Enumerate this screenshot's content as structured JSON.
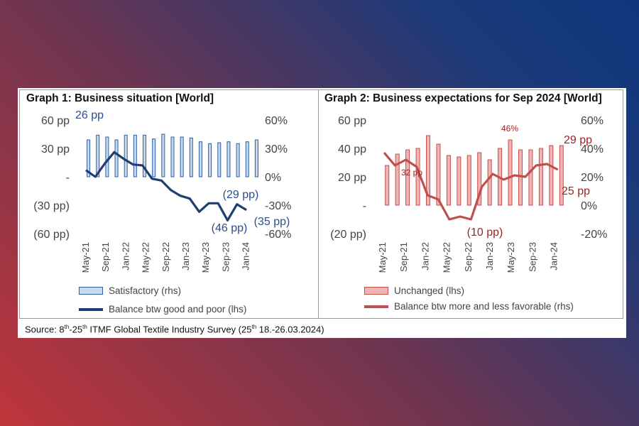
{
  "source": {
    "prefix": "Source: 8",
    "sup1": "th",
    "mid1": "-25",
    "sup2": "th",
    "mid2": " ITMF Global Textile Industry Survey (25",
    "sup3": "th",
    "suffix": " 18.-26.03.2024)"
  },
  "colors": {
    "blue_line": "#1f3f73",
    "blue_bar_fill": "#c5d9ef",
    "blue_bar_edge": "#2f5f9e",
    "red_line": "#c0504d",
    "red_bar_fill": "#f2b3b3",
    "red_bar_edge": "#c0504d"
  },
  "chart_data": [
    {
      "type": "bar+line",
      "title": "Graph 1: Business situation [World]",
      "xtick_labels": [
        "May-21",
        "Sep-21",
        "Jan-22",
        "May-22",
        "Sep-22",
        "Jan-23",
        "May-23",
        "Sep-23",
        "Jan-24"
      ],
      "left_axis": {
        "ticks": [
          60,
          30,
          0,
          -30,
          -60
        ],
        "labels": [
          "60 pp",
          "30 pp",
          "-",
          "(30 pp)",
          "(60 pp)"
        ],
        "range": [
          -60,
          60
        ]
      },
      "right_axis": {
        "ticks": [
          60,
          30,
          0,
          -30,
          -60
        ],
        "labels": [
          "60%",
          "30%",
          "0%",
          "-30%",
          "-60%"
        ],
        "range": [
          -60,
          60
        ]
      },
      "series": [
        {
          "name": "Satisfactory (rhs)",
          "kind": "bar",
          "axis": "right",
          "values": [
            39,
            44,
            42,
            39,
            44,
            44,
            44,
            40,
            45,
            42,
            42,
            41,
            37,
            35,
            36,
            37,
            35,
            37,
            39
          ]
        },
        {
          "name": "Balance btw good and poor (lhs)",
          "kind": "line",
          "axis": "left",
          "values": [
            7,
            0,
            14,
            26,
            19,
            13,
            12,
            -2,
            -4,
            -14,
            -20,
            -23,
            -37,
            -28,
            -28,
            -46,
            -29,
            -35
          ]
        }
      ],
      "annotations": [
        "26 pp",
        "(29 pp)",
        "(46 pp)",
        "(35 pp)"
      ]
    },
    {
      "type": "bar+line",
      "title": "Graph 2: Business expectations for Sep 2024 [World]",
      "xtick_labels": [
        "May-21",
        "Sep-21",
        "Jan-22",
        "May-22",
        "Sep-22",
        "Jan-23",
        "May-23",
        "Sep-23",
        "Jan-24"
      ],
      "left_axis": {
        "ticks": [
          60,
          40,
          20,
          0,
          -20
        ],
        "labels": [
          "60 pp",
          "40 pp",
          "20 pp",
          "-",
          "(20 pp)"
        ],
        "range": [
          -20,
          60
        ]
      },
      "right_axis": {
        "ticks": [
          60,
          40,
          20,
          0,
          -20
        ],
        "labels": [
          "60%",
          "40%",
          "20%",
          "0%",
          "-20%"
        ],
        "range": [
          -20,
          60
        ]
      },
      "series": [
        {
          "name": "Unchanged (lhs)",
          "kind": "bar",
          "axis": "left",
          "values": [
            28,
            36,
            39,
            40,
            49,
            43,
            35,
            34,
            35,
            37,
            32,
            40,
            46,
            39,
            39,
            40,
            42,
            42
          ]
        },
        {
          "name": "Balance btw more and less favorable (rhs)",
          "kind": "line",
          "axis": "right",
          "values": [
            37,
            28,
            32,
            27,
            7,
            4,
            -10,
            -8,
            -10,
            13,
            22,
            18,
            21,
            20,
            28,
            29,
            25
          ]
        }
      ],
      "annotations": [
        "32 pp",
        "46%",
        "29 pp",
        "25 pp",
        "(10 pp)"
      ]
    }
  ]
}
